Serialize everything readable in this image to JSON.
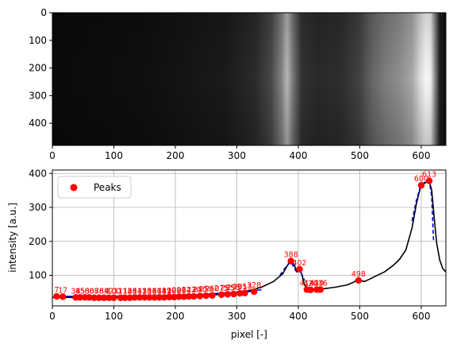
{
  "chart_data": [
    {
      "type": "heatmap",
      "xlabel": "",
      "ylabel": "",
      "xlim": [
        0,
        640
      ],
      "ylim": [
        480,
        0
      ],
      "x_ticks": [
        0,
        100,
        200,
        300,
        400,
        500,
        600
      ],
      "y_ticks": [
        0,
        100,
        200,
        300,
        400
      ],
      "colormap": "gray",
      "column_brightness": [
        [
          0,
          0.04
        ],
        [
          150,
          0.06
        ],
        [
          280,
          0.1
        ],
        [
          330,
          0.17
        ],
        [
          355,
          0.28
        ],
        [
          372,
          0.5
        ],
        [
          382,
          0.72
        ],
        [
          392,
          0.45
        ],
        [
          405,
          0.2
        ],
        [
          430,
          0.16
        ],
        [
          470,
          0.18
        ],
        [
          500,
          0.26
        ],
        [
          520,
          0.4
        ],
        [
          545,
          0.5
        ],
        [
          565,
          0.56
        ],
        [
          585,
          0.66
        ],
        [
          598,
          0.86
        ],
        [
          607,
          0.97
        ],
        [
          615,
          0.95
        ],
        [
          622,
          0.55
        ],
        [
          630,
          0.12
        ],
        [
          640,
          0.06
        ]
      ]
    },
    {
      "type": "line",
      "xlabel": "pixel [-]",
      "ylabel": "intensity [a.u.]",
      "xlim": [
        0,
        640
      ],
      "ylim": [
        10,
        410
      ],
      "x_ticks": [
        0,
        100,
        200,
        300,
        400,
        500,
        600
      ],
      "y_ticks": [
        100,
        200,
        300,
        400
      ],
      "grid": true,
      "legend": {
        "position": "upper-left",
        "entries": [
          "Peaks"
        ]
      },
      "series": [
        {
          "name": "",
          "color": "#000000",
          "style": "solid",
          "x": [
            0,
            50,
            100,
            150,
            200,
            230,
            260,
            290,
            320,
            340,
            360,
            375,
            385,
            390,
            394,
            398,
            402,
            406,
            410,
            415,
            420,
            430,
            440,
            460,
            480,
            490,
            497,
            502,
            508,
            515,
            525,
            540,
            555,
            565,
            575,
            585,
            592,
            598,
            603,
            608,
            613,
            617,
            621,
            625,
            630,
            635,
            640
          ],
          "y": [
            35,
            35,
            36,
            36,
            37,
            39,
            42,
            46,
            55,
            65,
            82,
            105,
            138,
            143,
            128,
            110,
            118,
            100,
            72,
            60,
            57,
            58,
            60,
            65,
            72,
            80,
            87,
            84,
            82,
            88,
            97,
            110,
            130,
            148,
            175,
            240,
            310,
            355,
            368,
            374,
            378,
            350,
            270,
            195,
            145,
            120,
            110
          ]
        }
      ],
      "fit_curves": [
        {
          "color": "#0000cc",
          "style": "solid",
          "x": [
            5,
            60,
            110,
            170,
            230,
            270,
            320,
            340
          ],
          "y": [
            38,
            38,
            39,
            39,
            42,
            47,
            52,
            58
          ]
        },
        {
          "color": "#0000cc",
          "style": "dashed",
          "x": [
            370,
            380,
            388,
            394,
            398,
            402,
            406,
            410
          ],
          "y": [
            100,
            125,
            140,
            120,
            108,
            118,
            102,
            85
          ]
        },
        {
          "color": "#0000cc",
          "style": "solid",
          "x": [
            410,
            420,
            430,
            440
          ],
          "y": [
            58,
            58,
            58,
            60
          ]
        },
        {
          "color": "#0000cc",
          "style": "dashed",
          "x": [
            492,
            498,
            504
          ],
          "y": [
            84,
            87,
            84
          ]
        },
        {
          "color": "#0000cc",
          "style": "dashed",
          "x": [
            585,
            592,
            598,
            604,
            609,
            613,
            617,
            620
          ],
          "y": [
            260,
            320,
            358,
            372,
            376,
            378,
            330,
            200
          ]
        }
      ],
      "peaks": {
        "name": "Peaks",
        "color": "#ff0000",
        "x": [
          7,
          17,
          38,
          45,
          53,
          60,
          68,
          76,
          84,
          92,
          100,
          111,
          118,
          126,
          134,
          142,
          150,
          158,
          166,
          174,
          182,
          190,
          198,
          206,
          214,
          222,
          230,
          240,
          250,
          260,
          275,
          285,
          295,
          305,
          313,
          328,
          388,
          402,
          414,
          420,
          430,
          436,
          498,
          600,
          613
        ],
        "y": [
          38,
          37,
          35,
          35,
          35,
          35,
          34,
          34,
          34,
          34,
          34,
          34,
          34,
          34,
          35,
          35,
          35,
          35,
          35,
          35,
          35,
          36,
          36,
          37,
          37,
          38,
          38,
          39,
          40,
          41,
          43,
          44,
          45,
          47,
          48,
          52,
          142,
          118,
          58,
          57,
          58,
          58,
          85,
          365,
          378
        ],
        "labels": [
          "7",
          "17",
          "38",
          "45",
          "53",
          "60",
          "68",
          "76",
          "84",
          "92",
          "100",
          "111",
          "118",
          "126",
          "134",
          "142",
          "150",
          "158",
          "166",
          "174",
          "182",
          "190",
          "198",
          "206",
          "214",
          "222",
          "230",
          "240",
          "250",
          "260",
          "275",
          "285",
          "295",
          "305",
          "313",
          "328",
          "388",
          "402",
          "414",
          "420",
          "430",
          "436",
          "498",
          "600",
          "613"
        ]
      }
    }
  ]
}
